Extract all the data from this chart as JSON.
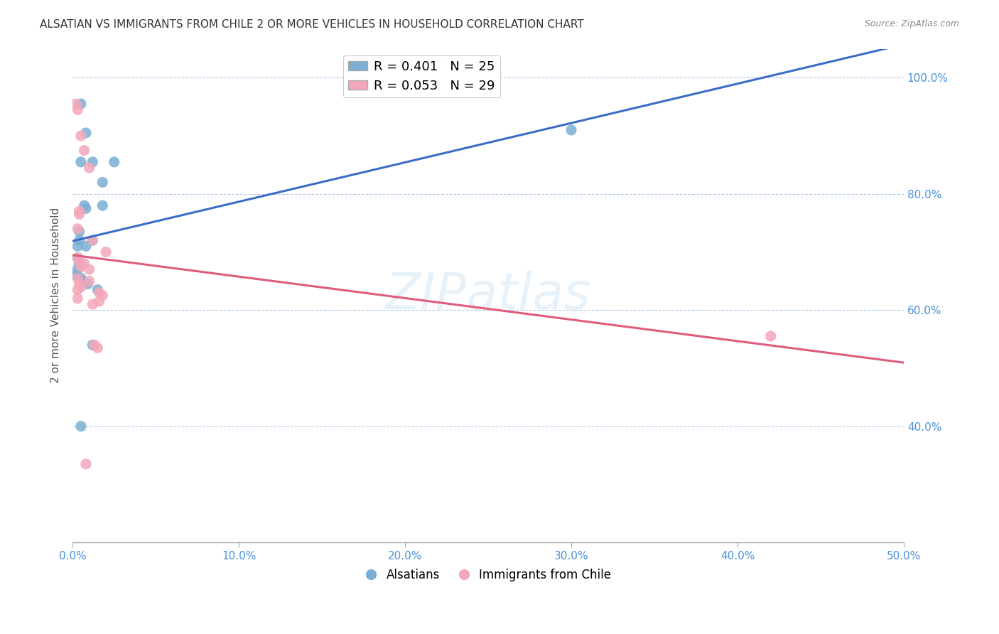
{
  "title": "ALSATIAN VS IMMIGRANTS FROM CHILE 2 OR MORE VEHICLES IN HOUSEHOLD CORRELATION CHART",
  "source": "Source: ZipAtlas.com",
  "ylabel": "2 or more Vehicles in Household",
  "legend_blue_label": "R = 0.401   N = 25",
  "legend_pink_label": "R = 0.053   N = 29",
  "x_tick_labels": [
    "0.0%",
    "10.0%",
    "20.0%",
    "30.0%",
    "40.0%",
    "50.0%"
  ],
  "x_min": 0.0,
  "x_max": 0.5,
  "y_min": 0.2,
  "y_max": 1.05,
  "blue_color": "#7BAFD4",
  "pink_color": "#F4A7B9",
  "blue_line_color": "#3B6DC7",
  "pink_line_color": "#E05C7A",
  "axis_color": "#4A90D9",
  "watermark": "ZIPatlas",
  "blue_x": [
    0.005,
    0.008,
    0.012,
    0.005,
    0.018,
    0.007,
    0.008,
    0.004,
    0.004,
    0.003,
    0.003,
    0.004,
    0.003,
    0.002,
    0.005,
    0.006,
    0.009,
    0.015,
    0.025,
    0.018,
    0.012,
    0.008,
    0.3,
    0.012,
    0.005
  ],
  "blue_y": [
    0.955,
    0.905,
    0.855,
    0.855,
    0.82,
    0.78,
    0.775,
    0.735,
    0.72,
    0.71,
    0.69,
    0.68,
    0.67,
    0.66,
    0.655,
    0.65,
    0.645,
    0.635,
    0.855,
    0.78,
    0.72,
    0.71,
    0.91,
    0.54,
    0.4
  ],
  "pink_x": [
    0.002,
    0.003,
    0.005,
    0.007,
    0.01,
    0.004,
    0.004,
    0.003,
    0.003,
    0.004,
    0.007,
    0.005,
    0.012,
    0.01,
    0.003,
    0.004,
    0.005,
    0.003,
    0.016,
    0.018,
    0.016,
    0.012,
    0.02,
    0.003,
    0.01,
    0.013,
    0.015,
    0.42,
    0.008
  ],
  "pink_y": [
    0.955,
    0.945,
    0.9,
    0.875,
    0.845,
    0.77,
    0.765,
    0.74,
    0.69,
    0.685,
    0.68,
    0.675,
    0.72,
    0.67,
    0.655,
    0.645,
    0.64,
    0.635,
    0.63,
    0.625,
    0.615,
    0.61,
    0.7,
    0.62,
    0.65,
    0.54,
    0.535,
    0.555,
    0.335
  ],
  "bottom_legend_labels": [
    "Alsatians",
    "Immigrants from Chile"
  ],
  "background_color": "#FFFFFF"
}
